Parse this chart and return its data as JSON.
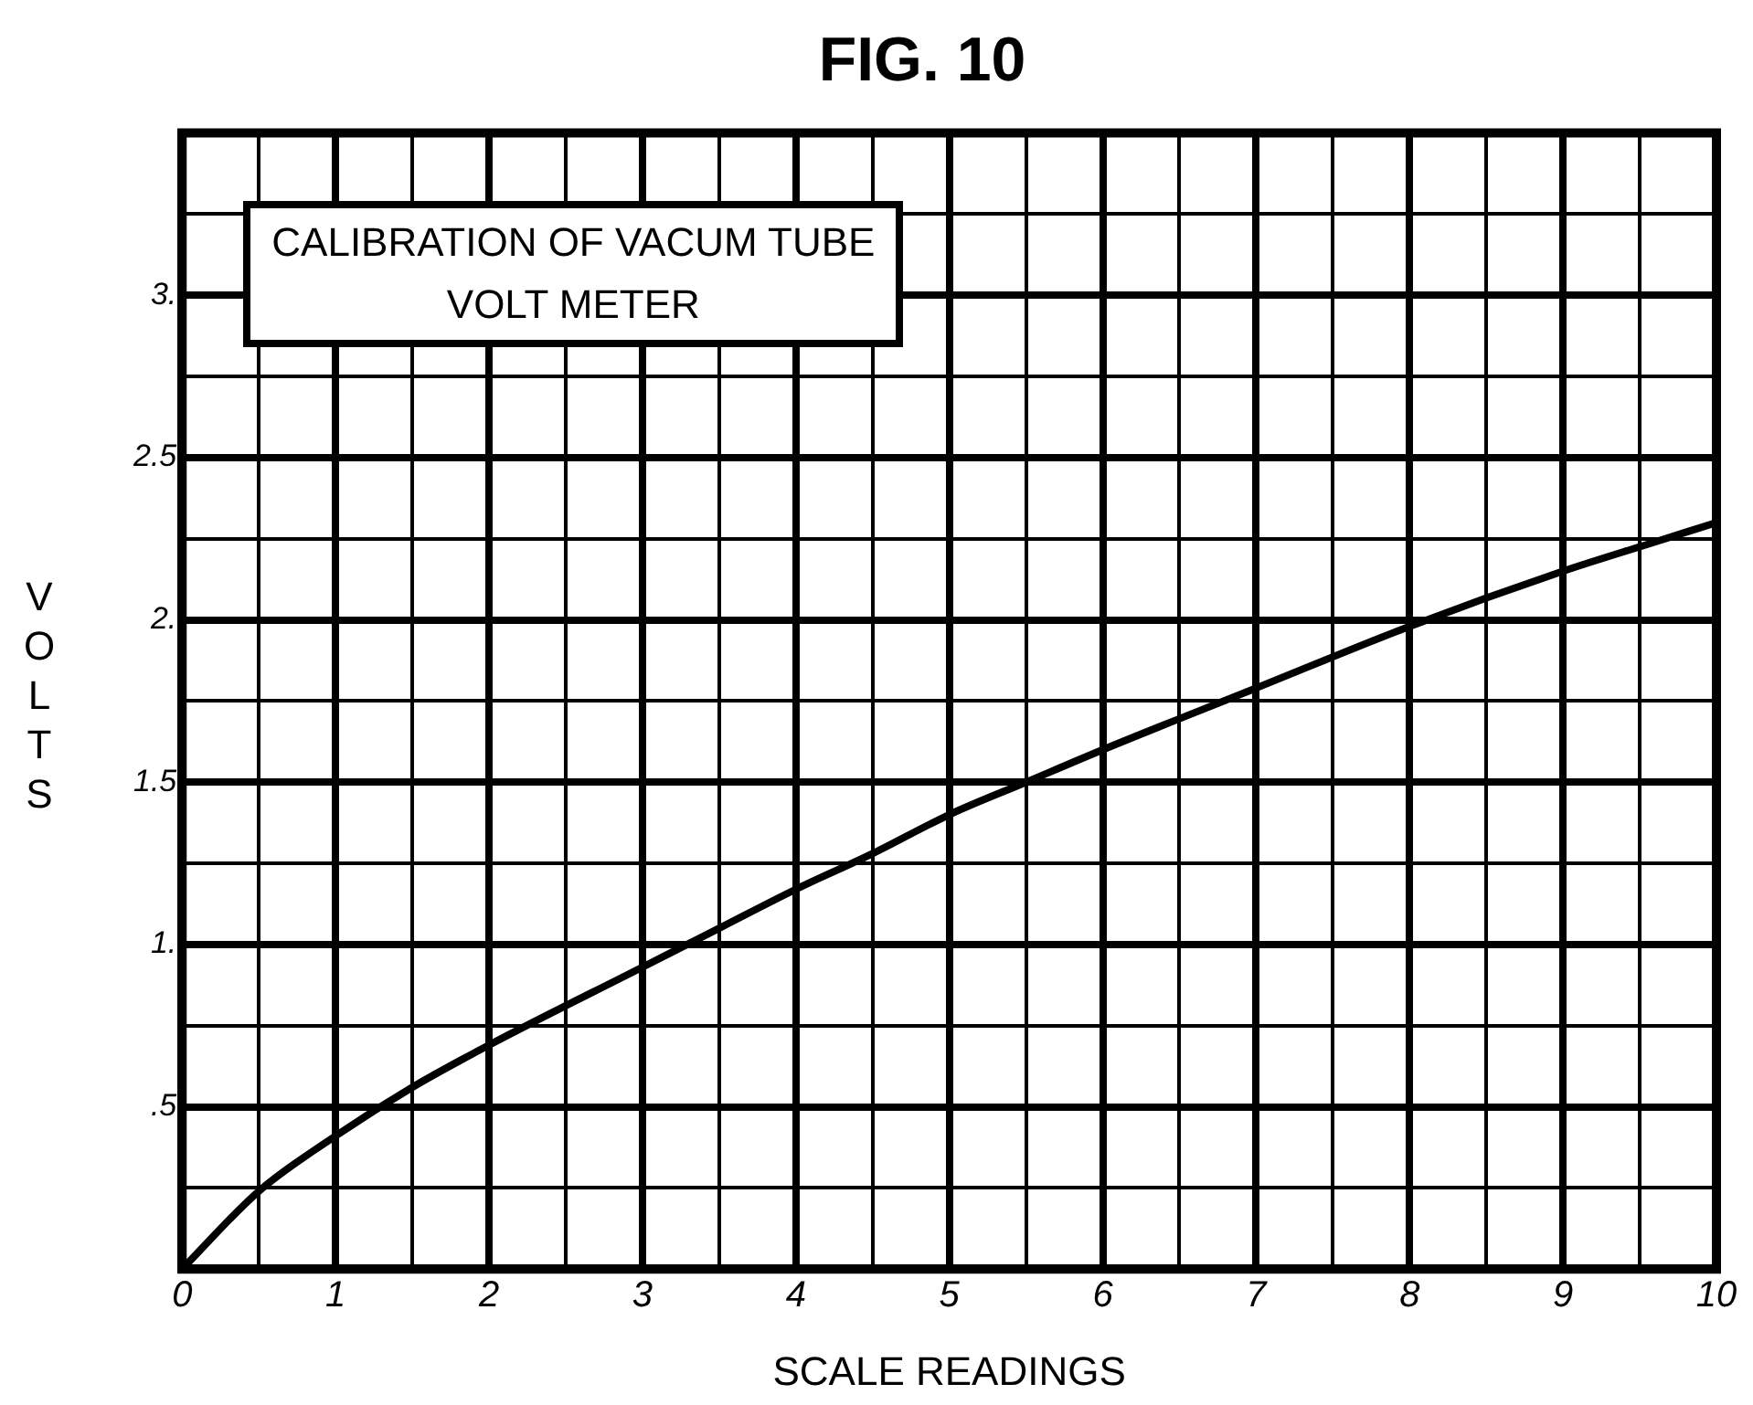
{
  "chart_data": {
    "type": "line",
    "title": "FIG. 10",
    "xlabel": "SCALE READINGS",
    "ylabel": "VOLTS",
    "annotations": [
      "CALIBRATION OF VACUM TUBE VOLT METER"
    ],
    "x": [
      0,
      0.5,
      1,
      1.5,
      2,
      3,
      3.5,
      4,
      4.5,
      5,
      5.5,
      6,
      7,
      8,
      9,
      9.6,
      10
    ],
    "series": [
      {
        "color": "#000000",
        "values": [
          0,
          0.24,
          0.41,
          0.56,
          0.69,
          0.93,
          1.05,
          1.17,
          1.28,
          1.4,
          1.5,
          1.6,
          1.79,
          1.98,
          2.15,
          2.24,
          2.3
        ]
      }
    ],
    "xlim": [
      0,
      10
    ],
    "xticks": [
      0,
      {
        "value": 0.5,
        "label": null
      },
      1,
      {
        "value": 1.5,
        "label": null
      },
      2,
      {
        "value": 2.5,
        "label": null
      },
      3,
      {
        "value": 3.5,
        "label": null
      },
      4,
      {
        "value": 4.5,
        "label": null
      },
      5,
      {
        "value": 5.5,
        "label": null
      },
      6,
      {
        "value": 6.5,
        "label": null
      },
      7,
      {
        "value": 7.5,
        "label": null
      },
      8,
      {
        "value": 8.5,
        "label": null
      },
      9,
      {
        "value": 9.5,
        "label": null
      },
      10
    ],
    "ylim": [
      0,
      3.5
    ],
    "yticks": [
      {
        "value": 0,
        "label": null
      },
      {
        "value": 0.25,
        "label": null
      },
      {
        "value": 0.5,
        "label": ".5"
      },
      {
        "value": 0.75,
        "label": null
      },
      {
        "value": 1,
        "label": "1."
      },
      {
        "value": 1.25,
        "label": null
      },
      {
        "value": 1.5,
        "label": "1.5"
      },
      {
        "value": 1.75,
        "label": null
      },
      {
        "value": 2,
        "label": "2."
      },
      {
        "value": 2.25,
        "label": null
      },
      {
        "value": 2.5,
        "label": "2.5"
      },
      {
        "value": 2.75,
        "label": null
      },
      {
        "value": 3,
        "label": "3."
      },
      {
        "value": 3.25,
        "label": null
      },
      {
        "value": 3.5,
        "label": null
      }
    ],
    "grid": true,
    "legend": false,
    "marker": "none",
    "line_style": "solid"
  }
}
